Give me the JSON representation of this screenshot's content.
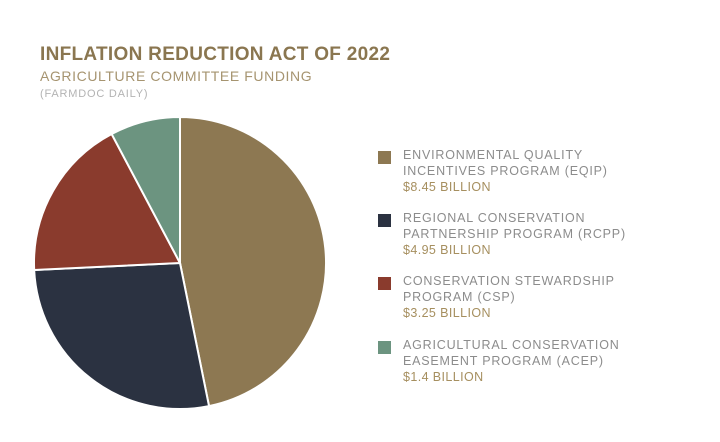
{
  "chart_data": {
    "type": "pie",
    "title": "INFLATION REDUCTION ACT OF 2022",
    "subtitle": "AGRICULTURE COMMITTEE FUNDING",
    "source": "(FARMDOC DAILY)",
    "unit": "BILLION",
    "legend_position": "right",
    "slices": [
      {
        "label": "ENVIRONMENTAL QUALITY\nINCENTIVES PROGRAM (EQIP)",
        "value": 8.45,
        "value_text": "$8.45 BILLION",
        "color": "#8d7852"
      },
      {
        "label": "REGIONAL CONSERVATION\nPARTNERSHIP PROGRAM (RCPP)",
        "value": 4.95,
        "value_text": "$4.95 BILLION",
        "color": "#2b3241"
      },
      {
        "label": "CONSERVATION STEWARDSHIP\nPROGRAM (CSP)",
        "value": 3.25,
        "value_text": "$3.25 BILLION",
        "color": "#8a3b2d"
      },
      {
        "label": "AGRICULTURAL CONSERVATION\nEASEMENT PROGRAM (ACEP)",
        "value": 1.4,
        "value_text": "$1.4 BILLION",
        "color": "#6c9480"
      }
    ]
  }
}
